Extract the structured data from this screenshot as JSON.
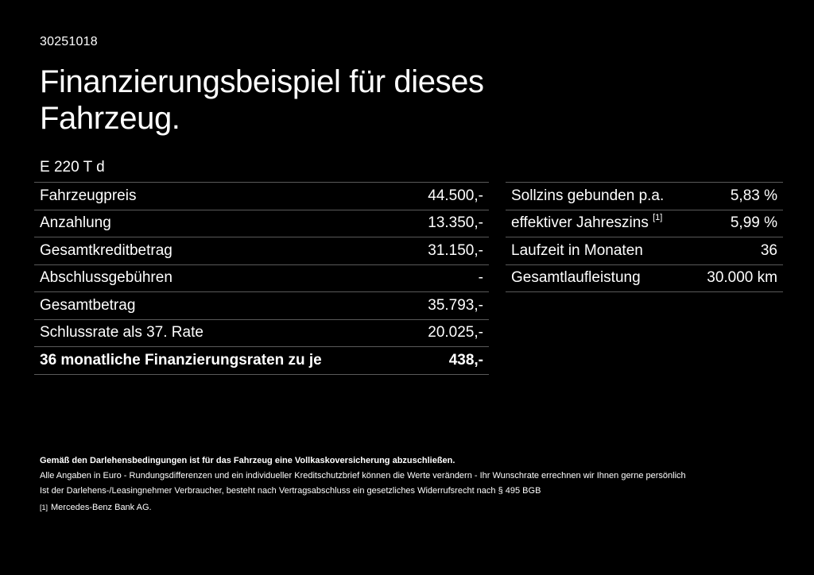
{
  "document": {
    "id": "30251018",
    "title": "Finanzierungsbeispiel für dieses Fahrzeug.",
    "model": "E 220 T d"
  },
  "left_table": {
    "rows": [
      {
        "label": "Fahrzeugpreis",
        "value": "44.500,-"
      },
      {
        "label": "Anzahlung",
        "value": "13.350,-"
      },
      {
        "label": "Gesamtkreditbetrag",
        "value": "31.150,-"
      },
      {
        "label": "Abschlussgebühren",
        "value": "-"
      },
      {
        "label": "Gesamtbetrag",
        "value": "35.793,-"
      },
      {
        "label": "Schlussrate als 37. Rate",
        "value": "20.025,-"
      },
      {
        "label": "36 monatliche Finanzierungsraten zu je",
        "value": "438,-",
        "bold": true
      }
    ]
  },
  "right_table": {
    "rows": [
      {
        "label": "Sollzins gebunden p.a.",
        "value": "5,83 %"
      },
      {
        "label": "effektiver Jahreszins",
        "footnote": "[1]",
        "value": "5,99 %"
      },
      {
        "label": "Laufzeit in Monaten",
        "value": "36"
      },
      {
        "label": "Gesamtlaufleistung",
        "value": "30.000 km"
      }
    ]
  },
  "footer": {
    "insurance_note": "Gemäß den Darlehensbedingungen ist für das Fahrzeug eine Vollkaskoversicherung abzuschließen.",
    "currency_note": "Alle Angaben in Euro - Rundungsdifferenzen und ein individueller Kreditschutzbrief können die Werte verändern - Ihr Wunschrate errechnen wir Ihnen gerne persönlich",
    "withdrawal_note": "Ist der Darlehens-/Leasingnehmer Verbraucher, besteht nach Vertragsabschluss ein gesetzliches Widerrufsrecht nach § 495 BGB",
    "footnote_marker": "[1]",
    "footnote_text": "Mercedes-Benz Bank AG."
  },
  "colors": {
    "background": "#000000",
    "text": "#ffffff",
    "divider": "#5a5a5a"
  }
}
